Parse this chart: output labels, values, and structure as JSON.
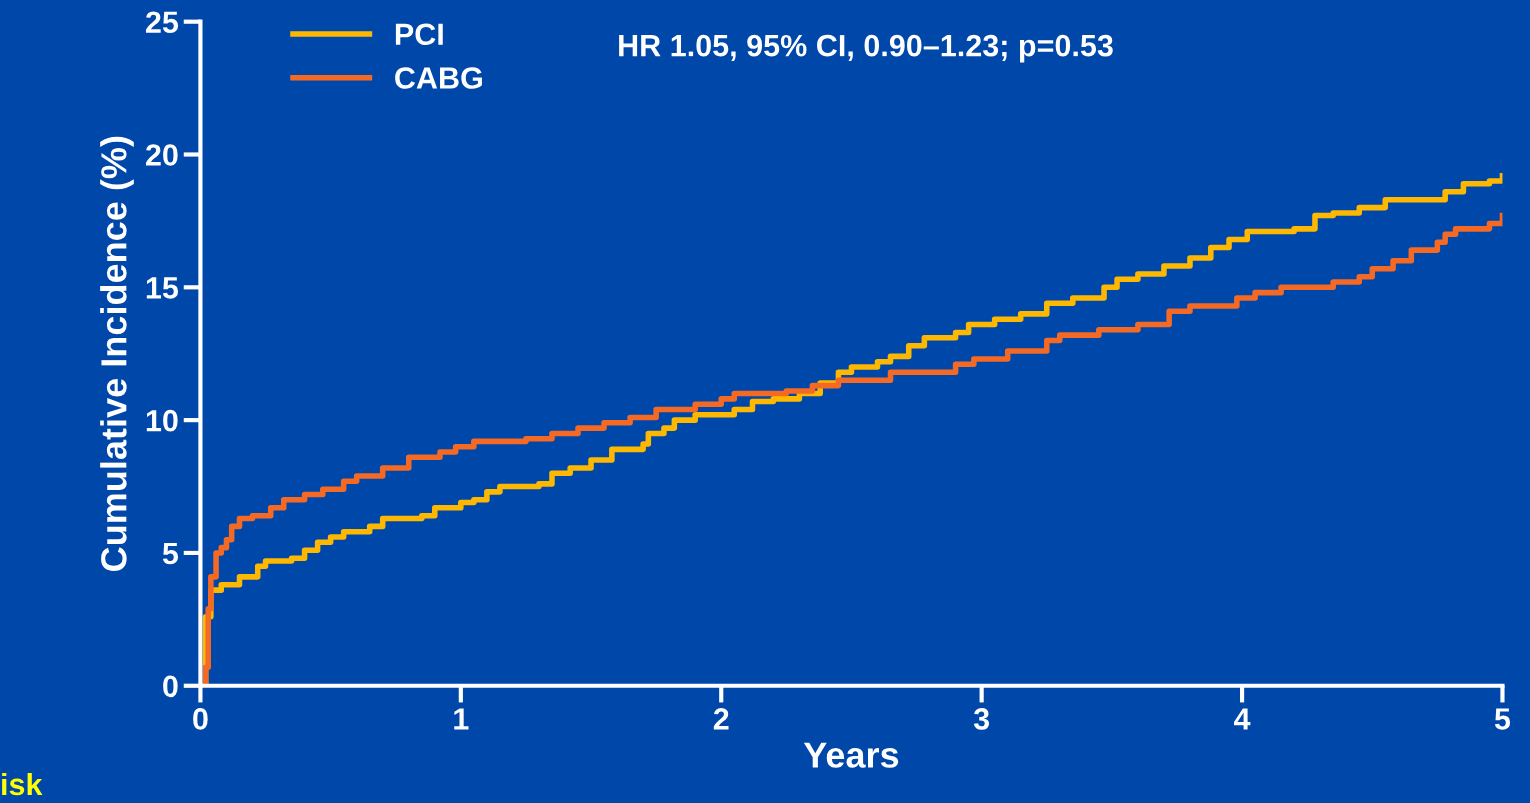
{
  "chart_data": {
    "type": "step",
    "xlabel": "Years",
    "ylabel": "Cumulative Incidence (%)",
    "annotations": [
      "HR 1.05, 95% CI, 0.90–1.23; p=0.53",
      "isk"
    ],
    "xlim": [
      0,
      5
    ],
    "ylim": [
      0,
      25
    ],
    "xticks": [
      0,
      1,
      2,
      3,
      4,
      5
    ],
    "yticks": [
      0,
      5,
      10,
      15,
      20,
      25
    ],
    "legend": "top left",
    "grid": false,
    "marker": "none",
    "line_style": "solid",
    "series": [
      {
        "name": "PCI",
        "color": "#ffb800",
        "x": [
          0,
          0.02,
          0.04,
          0.08,
          0.15,
          0.22,
          0.25,
          0.35,
          0.4,
          0.45,
          0.5,
          0.55,
          0.65,
          0.7,
          0.85,
          0.9,
          1.0,
          1.05,
          1.1,
          1.15,
          1.3,
          1.35,
          1.42,
          1.5,
          1.58,
          1.7,
          1.72,
          1.78,
          1.82,
          1.9,
          2.05,
          2.12,
          2.2,
          2.3,
          2.38,
          2.45,
          2.5,
          2.6,
          2.65,
          2.72,
          2.78,
          2.9,
          2.95,
          3.05,
          3.15,
          3.25,
          3.35,
          3.47,
          3.52,
          3.6,
          3.7,
          3.8,
          3.88,
          3.95,
          4.02,
          4.2,
          4.28,
          4.35,
          4.45,
          4.55,
          4.75,
          4.78,
          4.85,
          4.95,
          5.0
        ],
        "values": [
          0,
          2.6,
          3.6,
          3.8,
          4.1,
          4.5,
          4.7,
          4.8,
          5.1,
          5.4,
          5.6,
          5.8,
          6.0,
          6.3,
          6.4,
          6.7,
          6.9,
          7.0,
          7.3,
          7.5,
          7.6,
          8.0,
          8.2,
          8.5,
          8.9,
          9.1,
          9.5,
          9.7,
          10.0,
          10.2,
          10.4,
          10.7,
          10.8,
          11.0,
          11.4,
          11.8,
          12.0,
          12.2,
          12.4,
          12.8,
          13.1,
          13.3,
          13.6,
          13.8,
          14.0,
          14.4,
          14.6,
          15.0,
          15.3,
          15.5,
          15.8,
          16.1,
          16.5,
          16.8,
          17.1,
          17.2,
          17.7,
          17.8,
          18.0,
          18.3,
          18.3,
          18.6,
          18.9,
          19.0,
          19.2
        ]
      },
      {
        "name": "CABG",
        "color": "#f46a25",
        "x": [
          0,
          0.02,
          0.03,
          0.04,
          0.06,
          0.08,
          0.1,
          0.12,
          0.15,
          0.2,
          0.27,
          0.32,
          0.4,
          0.47,
          0.55,
          0.6,
          0.7,
          0.8,
          0.92,
          0.98,
          1.05,
          1.25,
          1.35,
          1.45,
          1.55,
          1.65,
          1.75,
          1.9,
          2.0,
          2.05,
          2.25,
          2.35,
          2.45,
          2.65,
          2.9,
          2.97,
          3.1,
          3.25,
          3.3,
          3.45,
          3.6,
          3.72,
          3.8,
          3.98,
          4.05,
          4.15,
          4.35,
          4.45,
          4.5,
          4.58,
          4.65,
          4.75,
          4.78,
          4.82,
          4.95,
          5.0
        ],
        "values": [
          0,
          0.7,
          2.9,
          4.1,
          5.0,
          5.2,
          5.5,
          6.0,
          6.3,
          6.4,
          6.7,
          7.0,
          7.2,
          7.4,
          7.7,
          7.9,
          8.2,
          8.6,
          8.8,
          9.0,
          9.2,
          9.3,
          9.5,
          9.7,
          9.9,
          10.1,
          10.4,
          10.6,
          10.8,
          11.0,
          11.1,
          11.3,
          11.5,
          11.8,
          12.1,
          12.3,
          12.6,
          13.0,
          13.2,
          13.4,
          13.6,
          14.1,
          14.3,
          14.6,
          14.8,
          15.0,
          15.2,
          15.4,
          15.7,
          16.0,
          16.4,
          16.7,
          17.0,
          17.2,
          17.4,
          17.7
        ]
      }
    ]
  }
}
